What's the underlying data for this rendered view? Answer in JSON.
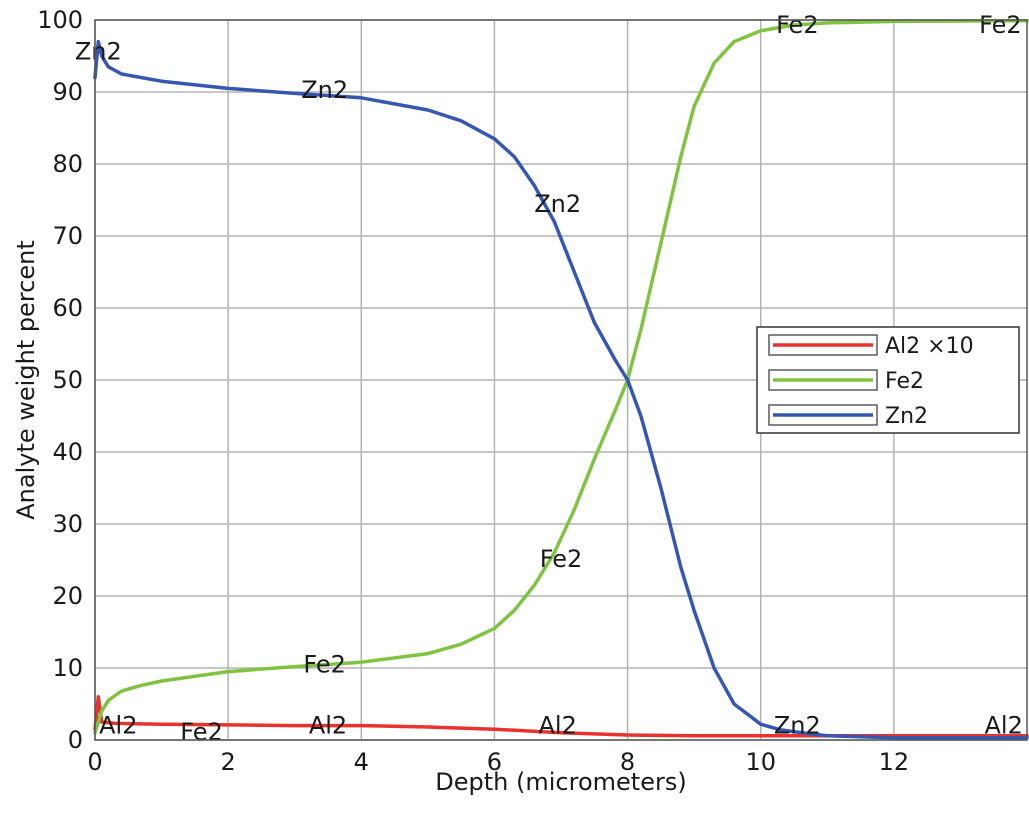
{
  "chart_data": {
    "type": "line",
    "title": "",
    "xlabel": "Depth (micrometers)",
    "ylabel": "Analyte weight percent",
    "xlim": [
      0,
      14
    ],
    "ylim": [
      0,
      100
    ],
    "xticks": [
      0,
      2,
      4,
      6,
      8,
      10,
      12
    ],
    "yticks": [
      0,
      10,
      20,
      30,
      40,
      50,
      60,
      70,
      80,
      90,
      100
    ],
    "grid": true,
    "legend_position": "right",
    "series": [
      {
        "name": "Al2 ×10",
        "color": "#e8322e",
        "x": [
          0.0,
          0.05,
          0.1,
          0.3,
          1,
          2,
          3,
          4,
          5,
          6,
          7,
          8,
          9,
          10,
          11,
          12,
          13,
          14
        ],
        "y": [
          1.5,
          6.0,
          2.5,
          2.3,
          2.2,
          2.1,
          2.0,
          2.0,
          1.8,
          1.5,
          1.0,
          0.7,
          0.6,
          0.6,
          0.6,
          0.6,
          0.6,
          0.6
        ]
      },
      {
        "name": "Fe2",
        "color": "#80c341",
        "x": [
          0.0,
          0.1,
          0.2,
          0.4,
          0.7,
          1.0,
          2.0,
          3.0,
          4.0,
          5.0,
          5.5,
          6.0,
          6.3,
          6.6,
          6.9,
          7.2,
          7.5,
          7.8,
          8.0,
          8.2,
          8.5,
          8.8,
          9.0,
          9.3,
          9.6,
          10.0,
          10.5,
          11.0,
          12.0,
          14.0
        ],
        "y": [
          1.0,
          4.0,
          5.5,
          6.8,
          7.6,
          8.2,
          9.5,
          10.2,
          10.8,
          12.0,
          13.3,
          15.5,
          18.0,
          21.5,
          26.0,
          32.0,
          39.0,
          45.5,
          50.0,
          57.0,
          69.0,
          81.0,
          88.0,
          94.0,
          97.0,
          98.5,
          99.3,
          99.6,
          99.8,
          99.9
        ]
      },
      {
        "name": "Zn2",
        "color": "#3557b0",
        "x": [
          0.0,
          0.05,
          0.1,
          0.2,
          0.4,
          0.7,
          1.0,
          2.0,
          3.0,
          4.0,
          5.0,
          5.5,
          6.0,
          6.3,
          6.6,
          6.9,
          7.2,
          7.5,
          7.8,
          8.0,
          8.2,
          8.5,
          8.8,
          9.0,
          9.3,
          9.6,
          10.0,
          10.3,
          10.7,
          11.0,
          12.0,
          14.0
        ],
        "y": [
          92.0,
          97.0,
          95.0,
          93.5,
          92.5,
          92.0,
          91.5,
          90.5,
          89.8,
          89.2,
          87.5,
          86.0,
          83.5,
          81.0,
          77.0,
          72.0,
          65.0,
          58.0,
          53.0,
          50.0,
          45.0,
          35.0,
          24.0,
          18.0,
          10.0,
          5.0,
          2.2,
          1.4,
          0.9,
          0.6,
          0.3,
          0.3
        ]
      }
    ],
    "point_labels": [
      {
        "text": "Zn2",
        "x": 0.05,
        "y": 94.5
      },
      {
        "text": "Zn2",
        "x": 3.45,
        "y": 89.2
      },
      {
        "text": "Zn2",
        "x": 6.95,
        "y": 73.3
      },
      {
        "text": "Zn2",
        "x": 10.55,
        "y": 0.9
      },
      {
        "text": "Fe2",
        "x": 1.6,
        "y": 0
      },
      {
        "text": "Fe2",
        "x": 3.45,
        "y": 9.4
      },
      {
        "text": "Fe2",
        "x": 7.0,
        "y": 24.0
      },
      {
        "text": "Fe2",
        "x": 10.55,
        "y": 98.2
      },
      {
        "text": "Fe2",
        "x": 13.6,
        "y": 98.2
      },
      {
        "text": "Al2",
        "x": 0.35,
        "y": 0.9
      },
      {
        "text": "Al2",
        "x": 3.5,
        "y": 0.9
      },
      {
        "text": "Al2",
        "x": 6.95,
        "y": 0.9
      },
      {
        "text": "Al2",
        "x": 13.65,
        "y": 0.9
      }
    ]
  }
}
